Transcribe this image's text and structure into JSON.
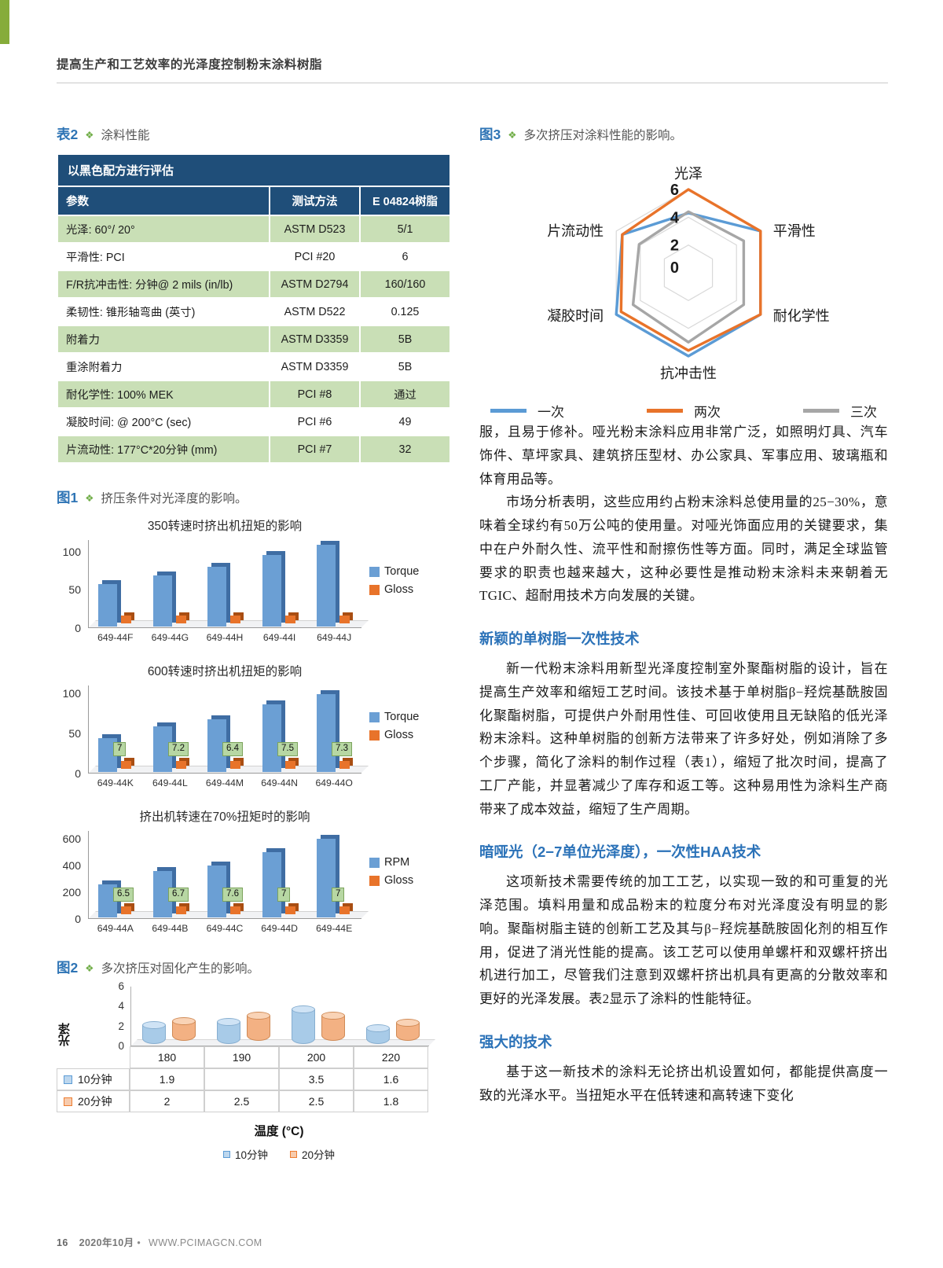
{
  "header": {
    "title": "提高生产和工艺效率的光泽度控制粉末涂料树脂"
  },
  "footer": {
    "page_number": "16",
    "issue": "2020年10月",
    "bullet": "•",
    "website": "WWW.PCIMAGCN.COM"
  },
  "captions": {
    "table2": {
      "label": "表2",
      "marker": "❖",
      "text": "涂料性能"
    },
    "fig1": {
      "label": "图1",
      "marker": "❖",
      "text": "挤压条件对光泽度的影响。"
    },
    "fig2": {
      "label": "图2",
      "marker": "❖",
      "text": "多次挤压对固化产生的影响。"
    },
    "fig3": {
      "label": "图3",
      "marker": "❖",
      "text": "多次挤压对涂料性能的影响。"
    }
  },
  "table2": {
    "title": "以黑色配方进行评估",
    "columns": [
      "参数",
      "测试方法",
      "E 04824树脂"
    ],
    "rows": [
      [
        "光泽: 60°/ 20°",
        "ASTM D523",
        "5/1"
      ],
      [
        "平滑性: PCI",
        "PCI #20",
        "6"
      ],
      [
        "F/R抗冲击性: 分钟@ 2 mils (in/lb)",
        "ASTM D2794",
        "160/160"
      ],
      [
        "柔韧性: 锥形轴弯曲 (英寸)",
        "ASTM D522",
        "0.125"
      ],
      [
        "附着力",
        "ASTM D3359",
        "5B"
      ],
      [
        "重涂附着力",
        "ASTM D3359",
        "5B"
      ],
      [
        "耐化学性: 100% MEK",
        "PCI #8",
        "通过"
      ],
      [
        "凝胶时间: @ 200°C (sec)",
        "PCI #6",
        "49"
      ],
      [
        "片流动性: 177°C*20分钟 (mm)",
        "PCI #7",
        "32"
      ]
    ]
  },
  "chart_data": [
    {
      "id": "chart-350",
      "type": "bar",
      "title": "350转速时挤出机扭矩的影响",
      "categories": [
        "649-44F",
        "649-44G",
        "649-44H",
        "649-44I",
        "649-44J"
      ],
      "series": [
        {
          "name": "Torque",
          "color": "#6b9fd4",
          "values": [
            55,
            67,
            78,
            93,
            107
          ]
        },
        {
          "name": "Gloss",
          "color": "#e8732a",
          "values": [
            8,
            8,
            8,
            8,
            8
          ]
        }
      ],
      "yticks": [
        0,
        50,
        100
      ],
      "ymax": 115,
      "data_labels": false
    },
    {
      "id": "chart-600",
      "type": "bar",
      "title": "600转速时挤出机扭矩的影响",
      "categories": [
        "649-44K",
        "649-44L",
        "649-44M",
        "649-44N",
        "649-44O"
      ],
      "series": [
        {
          "name": "Torque",
          "color": "#6b9fd4",
          "values": [
            42,
            57,
            66,
            84,
            97
          ]
        },
        {
          "name": "Gloss",
          "color": "#e8732a",
          "values": [
            7,
            7.2,
            6.4,
            7.5,
            7.3
          ]
        }
      ],
      "yticks": [
        0,
        50,
        100
      ],
      "ymax": 110,
      "data_labels": true
    },
    {
      "id": "chart-rpm",
      "type": "bar",
      "title": "挤出机转速在70%扭矩时的影响",
      "categories": [
        "649-44A",
        "649-44B",
        "649-44C",
        "649-44D",
        "649-44E"
      ],
      "series": [
        {
          "name": "RPM",
          "color": "#6b9fd4",
          "values": [
            250,
            350,
            390,
            490,
            590
          ]
        },
        {
          "name": "Gloss",
          "color": "#e8732a",
          "values": [
            6.5,
            6.7,
            7.6,
            7,
            7
          ]
        }
      ],
      "yticks": [
        0,
        200,
        400,
        600
      ],
      "ymax": 660,
      "data_labels": true
    },
    {
      "id": "chart-radar",
      "type": "radar",
      "axes": [
        "光泽",
        "平滑性",
        "耐化学性",
        "抗冲击性",
        "凝胶时间",
        "片流动性"
      ],
      "ticks": [
        6,
        4,
        2,
        0
      ],
      "max": 6,
      "series": [
        {
          "name": "一次",
          "color": "#5b9bd5",
          "values": [
            4.3,
            6,
            6,
            6,
            6,
            5.5
          ]
        },
        {
          "name": "两次",
          "color": "#e8732a",
          "values": [
            6,
            6,
            6,
            5.6,
            5.6,
            5.5
          ]
        },
        {
          "name": "三次",
          "color": "#a6a6a6",
          "values": [
            4.4,
            4.6,
            4.6,
            5,
            4.6,
            4.1
          ]
        }
      ]
    },
    {
      "id": "chart-fig2",
      "type": "cylinder",
      "ylabel": "光泽",
      "yticks": [
        6,
        4,
        2,
        0
      ],
      "ymax": 6,
      "categories": [
        "180",
        "190",
        "200",
        "220"
      ],
      "series": [
        {
          "name": "10分钟",
          "color": "#bdd7ee",
          "values": [
            1.9,
            2.2,
            3.5,
            1.6
          ]
        },
        {
          "name": "20分钟",
          "color": "#f7cbad",
          "values": [
            2,
            2.5,
            2.5,
            1.8
          ]
        }
      ],
      "table_rows": [
        {
          "name": "10分钟",
          "cells": [
            "1.9",
            "",
            "3.5",
            "1.6"
          ]
        },
        {
          "name": "20分钟",
          "cells": [
            "2",
            "2.5",
            "2.5",
            "1.8"
          ]
        }
      ],
      "xlabel": "温度 (°C)",
      "legend": [
        "10分钟",
        "20分钟"
      ]
    }
  ],
  "article": {
    "blocks": [
      {
        "kind": "p",
        "indent": false,
        "text": "服，且易于修补。哑光粉末涂料应用非常广泛，如照明灯具、汽车饰件、草坪家具、建筑挤压型材、办公家具、军事应用、玻璃瓶和体育用品等。"
      },
      {
        "kind": "p",
        "indent": true,
        "text": "市场分析表明，这些应用约占粉末涂料总使用量的25−30%，意味着全球约有50万公吨的使用量。对哑光饰面应用的关键要求，集中在户外耐久性、流平性和耐擦伤性等方面。同时，满足全球监管要求的职责也越来越大，这种必要性是推动粉末涂料未来朝着无TGIC、超耐用技术方向发展的关键。"
      },
      {
        "kind": "h",
        "text": "新颖的单树脂一次性技术"
      },
      {
        "kind": "p",
        "indent": true,
        "text": "新一代粉末涂料用新型光泽度控制室外聚酯树脂的设计，旨在提高生产效率和缩短工艺时间。该技术基于单树脂β−羟烷基酰胺固化聚酯树脂，可提供户外耐用性佳、可回收使用且无缺陷的低光泽粉末涂料。这种单树脂的创新方法带来了许多好处，例如消除了多个步骤，简化了涂料的制作过程（表1），缩短了批次时间，提高了工厂产能，并显著减少了库存和返工等。这种易用性为涂料生产商带来了成本效益，缩短了生产周期。"
      },
      {
        "kind": "h",
        "text": "暗哑光（2−7单位光泽度），一次性HAA技术"
      },
      {
        "kind": "p",
        "indent": true,
        "text": "这项新技术需要传统的加工工艺，以实现一致的和可重复的光泽范围。填料用量和成品粉末的粒度分布对光泽度没有明显的影响。聚酯树脂主链的创新工艺及其与β−羟烷基酰胺固化剂的相互作用，促进了消光性能的提高。该工艺可以使用单螺杆和双螺杆挤出机进行加工，尽管我们注意到双螺杆挤出机具有更高的分散效率和更好的光泽发展。表2显示了涂料的性能特征。"
      },
      {
        "kind": "h",
        "text": "强大的技术"
      },
      {
        "kind": "p",
        "indent": true,
        "text": "基于这一新技术的涂料无论挤出机设置如何，都能提供高度一致的光泽水平。当扭矩水平在低转速和高转速下变化"
      }
    ]
  }
}
